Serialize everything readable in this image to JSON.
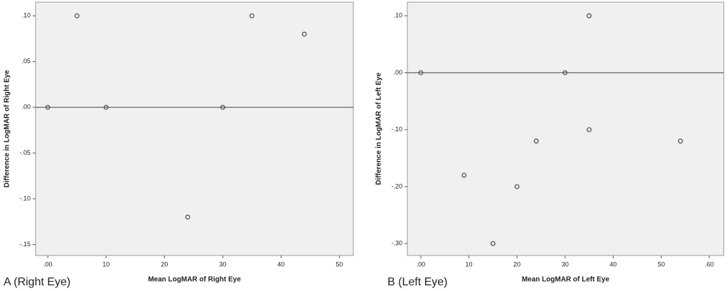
{
  "chart_data": [
    {
      "type": "scatter",
      "caption": "A (Right Eye)",
      "x_label": "Mean LogMAR of Right Eye",
      "y_label": "Difference in LogMAR of Right Eye",
      "x": [
        0,
        0.05,
        0.1,
        0.24,
        0.3,
        0.35,
        0.44
      ],
      "values": [
        0,
        0.1,
        0,
        -0.12,
        0,
        0.1,
        0.08
      ],
      "xlim": [
        -0.021,
        0.524
      ],
      "ylim": [
        -0.162,
        0.115
      ],
      "xticks": [
        {
          "value": 0,
          "label": ".00"
        },
        {
          "value": 0.1,
          "label": "10"
        },
        {
          "value": 0.2,
          "label": "20"
        },
        {
          "value": 0.3,
          "label": "30"
        },
        {
          "value": 0.4,
          "label": "40"
        },
        {
          "value": 0.5,
          "label": "50"
        }
      ],
      "yticks": [
        {
          "value": 0.1,
          "label": ".10"
        },
        {
          "value": 0.05,
          "label": ".05"
        },
        {
          "value": 0,
          "label": ".00"
        },
        {
          "value": -0.05,
          "label": "-.05"
        },
        {
          "value": -0.1,
          "label": "-.10"
        },
        {
          "value": -0.15,
          "label": "-.15"
        }
      ],
      "reference_line": 0,
      "color": "#555555"
    },
    {
      "type": "scatter",
      "caption": "B (Left Eye)",
      "x_label": "Mean LogMAR of Left Eye",
      "y_label": "Difference in LogMAR of Left Eye",
      "x": [
        0,
        0.09,
        0.15,
        0.2,
        0.24,
        0.3,
        0.35,
        0.35,
        0.54
      ],
      "values": [
        0,
        -0.18,
        -0.3,
        -0.2,
        -0.12,
        0,
        0.1,
        -0.1,
        -0.12
      ],
      "xlim": [
        -0.028,
        0.63
      ],
      "ylim": [
        -0.321,
        0.124
      ],
      "xticks": [
        {
          "value": 0,
          "label": ".00"
        },
        {
          "value": 0.1,
          "label": "10"
        },
        {
          "value": 0.2,
          "label": "20"
        },
        {
          "value": 0.3,
          "label": "30"
        },
        {
          "value": 0.4,
          "label": "40"
        },
        {
          "value": 0.5,
          "label": "50"
        },
        {
          "value": 0.6,
          "label": ".60"
        }
      ],
      "yticks": [
        {
          "value": 0.1,
          "label": ".10"
        },
        {
          "value": 0,
          "label": ".00"
        },
        {
          "value": -0.1,
          "label": "-.10"
        },
        {
          "value": -0.2,
          "label": "-.20"
        },
        {
          "value": -0.3,
          "label": "-.30"
        }
      ],
      "reference_line": 0,
      "color": "#555555"
    }
  ]
}
